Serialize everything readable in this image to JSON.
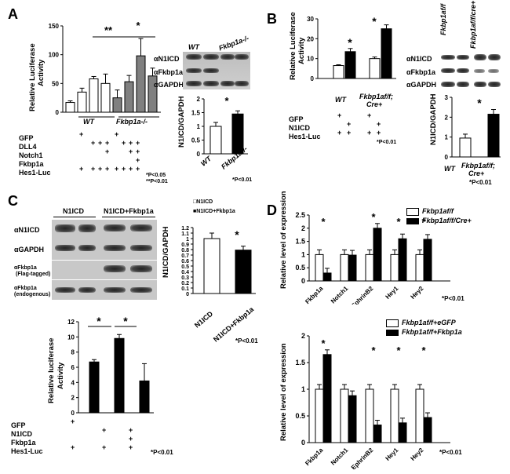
{
  "panelA": {
    "letter": "A",
    "ylabel_line1": "Relative Luciferase",
    "ylabel_line2": "Activity",
    "yticks": [
      "0",
      "50",
      "100",
      "150"
    ],
    "group_labels": [
      "WT",
      "Fkbp1a-/-"
    ],
    "sig_labels": [
      "**",
      "*"
    ],
    "row_labels": [
      "GFP",
      "DLL4",
      "Notch1",
      "Fkbp1a",
      "Hes1-Luc"
    ],
    "marks": [
      [
        "+",
        "",
        "",
        "",
        "+",
        "",
        "",
        ""
      ],
      [
        "",
        "+",
        "+",
        "+",
        "",
        "+",
        "+",
        "+"
      ],
      [
        "",
        "",
        "",
        "+",
        "",
        "",
        "+",
        "+"
      ],
      [
        "",
        "",
        "",
        "",
        "",
        "",
        "",
        "+"
      ],
      [
        "+",
        "+",
        "+",
        "+",
        "+",
        "+",
        "+",
        "+"
      ]
    ],
    "pvalues": [
      "*P<0.05",
      "**P<0.01"
    ],
    "chart_data": {
      "type": "bar",
      "ylim": [
        0,
        150
      ],
      "values": [
        17,
        35,
        58,
        50,
        25,
        53,
        98,
        63
      ],
      "fills": [
        "white",
        "white",
        "white",
        "white",
        "gray",
        "gray",
        "gray",
        "gray"
      ]
    },
    "blot": {
      "headers": [
        "WT",
        "Fkbp1a-/-"
      ],
      "rows": [
        "αN1ICD",
        "αFkbp1a",
        "αGAPDH"
      ]
    },
    "quant": {
      "ylabel": "N1ICD/GAPDH",
      "yticks": [
        "0",
        "0.5",
        "1",
        "1.5",
        "2"
      ],
      "categories": [
        "WT",
        "Fkbp1a-/-"
      ],
      "sig": "*",
      "pvalue": "*P<0.01",
      "chart_data": {
        "type": "bar",
        "ylim": [
          0,
          2
        ],
        "values": [
          1.0,
          1.45
        ],
        "fills": [
          "white",
          "black"
        ]
      }
    }
  },
  "panelB": {
    "letter": "B",
    "ylabel_line1": "Relative Luciferase",
    "ylabel_line2": "Activity",
    "yticks": [
      "0",
      "10",
      "20",
      "30"
    ],
    "group_labels": [
      "WT",
      "Fkbp1af/f;",
      "Cre+"
    ],
    "sig_labels": [
      "*",
      "*"
    ],
    "row_labels": [
      "GFP",
      "N1ICD",
      "Hes1-Luc"
    ],
    "marks": [
      [
        "+",
        "",
        "+",
        ""
      ],
      [
        "",
        "+",
        "",
        "+"
      ],
      [
        "+",
        "+",
        "+",
        "+"
      ]
    ],
    "pvalue": "*P<0.01",
    "chart_data": {
      "type": "bar",
      "ylim": [
        0,
        30
      ],
      "values": [
        6.5,
        13.5,
        10,
        25
      ],
      "fills": [
        "white",
        "black",
        "white",
        "black"
      ]
    },
    "blot": {
      "headers": [
        "Fkbp1af/f",
        "Fkbp1af/f/cre+"
      ],
      "rows": [
        "αN1ICD",
        "αFkbp1a",
        "αGAPDH"
      ]
    },
    "quant": {
      "ylabel": "N1ICD/GAPDH",
      "yticks": [
        "0",
        "1",
        "2",
        "3"
      ],
      "categories": [
        "WT",
        "Fkbp1af/f;",
        "Cre+"
      ],
      "sig": "*",
      "pvalue": "*P<0.01",
      "chart_data": {
        "type": "bar",
        "ylim": [
          0,
          3
        ],
        "values": [
          0.95,
          2.15
        ],
        "fills": [
          "white",
          "black"
        ]
      }
    }
  },
  "panelC": {
    "letter": "C",
    "blot_headers": [
      "N1ICD",
      "N1ICD+Fkbp1a"
    ],
    "blot_rows": [
      "αN1ICD",
      "αGAPDH",
      "αFkbp1a",
      "(Flag-tagged)",
      "αFkbp1a",
      "(endogenous)"
    ],
    "legend": [
      "□N1ICD",
      "■N1ICD+Fkbp1a"
    ],
    "quant": {
      "ylabel": "N1ICD/GAPDH",
      "yticks": [
        "0",
        "0.1",
        "0.2",
        "0.3",
        "0.4",
        "0.5",
        "0.6",
        "0.7",
        "0.8",
        "0.9",
        "1",
        "1.1",
        "1.2"
      ],
      "categories": [
        "N1ICD",
        "N1ICD+Fkbp1a"
      ],
      "sig": "*",
      "pvalue": "*P<0.01",
      "chart_data": {
        "type": "bar",
        "ylim": [
          0,
          1.2
        ],
        "values": [
          1.0,
          0.79
        ],
        "fills": [
          "white",
          "black"
        ]
      }
    },
    "luc": {
      "ylabel_line1": "Relative luciferase",
      "ylabel_line2": "Activity",
      "yticks": [
        "0",
        "2",
        "4",
        "6",
        "8",
        "10",
        "12"
      ],
      "sig_labels": [
        "*",
        "*"
      ],
      "row_labels": [
        "GFP",
        "N1ICD",
        "Fkbp1a",
        "Hes1-Luc"
      ],
      "marks": [
        [
          "+",
          "",
          ""
        ],
        [
          "",
          "+",
          "+"
        ],
        [
          "",
          "",
          "+"
        ],
        [
          "+",
          "+",
          "+"
        ]
      ],
      "pvalue": "*P<0.01",
      "chart_data": {
        "type": "bar",
        "ylim": [
          0,
          12
        ],
        "values": [
          6.7,
          9.8,
          4.2
        ],
        "fills": [
          "black",
          "black",
          "black"
        ]
      }
    }
  },
  "panelD": {
    "letter": "D",
    "top": {
      "ylabel": "Relative level of expression",
      "yticks": [
        "0",
        "0.5",
        "1",
        "1.5",
        "2",
        "2.5"
      ],
      "legend": [
        "Fkbp1af/f",
        "Fkbp1af/f/Cre+"
      ],
      "categories": [
        "Fkbp1a",
        "Notch1",
        "EphrinB2",
        "Hey1",
        "Hey2"
      ],
      "pvalue": "*P<0.01",
      "chart_data": {
        "type": "bar",
        "ylim": [
          0,
          2.5
        ],
        "categories": [
          "Fkbp1a",
          "Notch1",
          "EphrinB2",
          "Hey1",
          "Hey2"
        ],
        "series": [
          {
            "name": "Fkbp1af/f",
            "values": [
              1.0,
              1.0,
              1.0,
              1.0,
              1.0
            ]
          },
          {
            "name": "Fkbp1af/f/Cre+",
            "values": [
              0.3,
              0.98,
              2.0,
              1.6,
              1.58
            ]
          }
        ],
        "sig": [
          true,
          false,
          true,
          true,
          true
        ]
      }
    },
    "bottom": {
      "ylabel": "Relative level of expression",
      "yticks": [
        "0",
        "0.5",
        "1",
        "1.5",
        "2"
      ],
      "legend": [
        "Fkbp1af/f+eGFP",
        "Fkbp1af/f+Fkbp1a"
      ],
      "categories": [
        "Fkbp1a",
        "Notch1",
        "EphrinB2",
        "Hey1",
        "Hey2"
      ],
      "pvalue": "*P<0.01",
      "chart_data": {
        "type": "bar",
        "ylim": [
          0,
          2
        ],
        "categories": [
          "Fkbp1a",
          "Notch1",
          "EphrinB2",
          "Hey1",
          "Hey2"
        ],
        "series": [
          {
            "name": "Fkbp1af/f+eGFP",
            "values": [
              1.0,
              1.0,
              1.0,
              1.0,
              1.0
            ]
          },
          {
            "name": "Fkbp1af/f+Fkbp1a",
            "values": [
              1.65,
              0.88,
              0.33,
              0.37,
              0.47
            ]
          }
        ],
        "sig": [
          true,
          false,
          true,
          true,
          true
        ]
      }
    }
  }
}
